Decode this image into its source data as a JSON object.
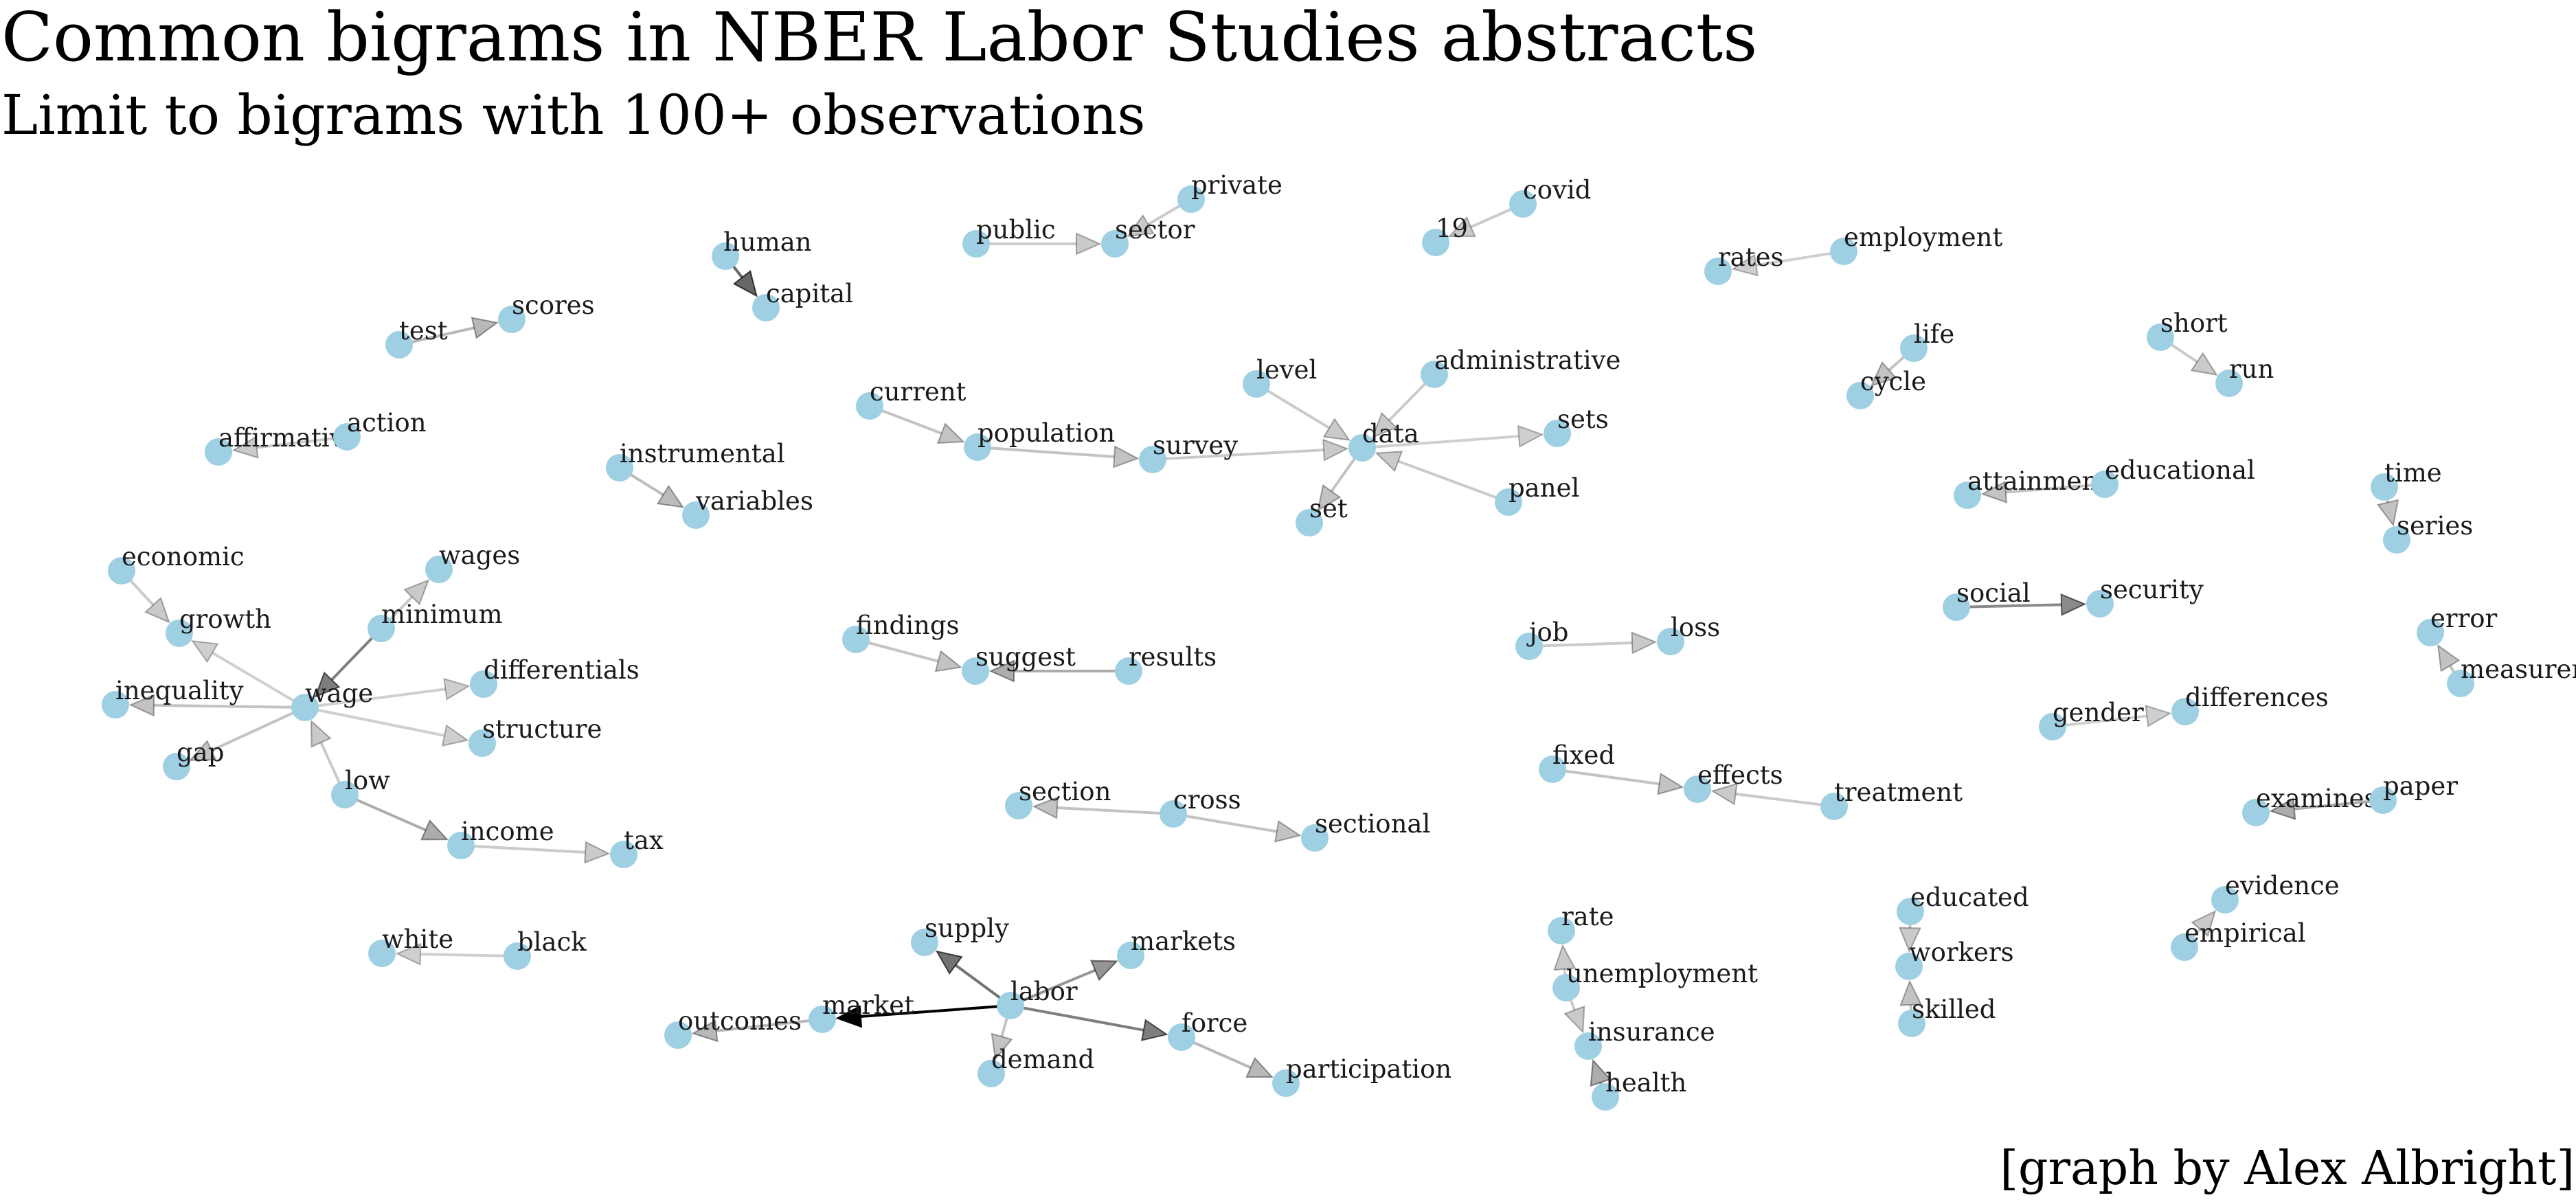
{
  "title": "Common bigrams in NBER Labor Studies abstracts",
  "subtitle": "Limit to bigrams with 100+ observations",
  "credit": "[graph by Alex Albright]",
  "colors": {
    "node": "#9ecfe3",
    "edge": "#000000"
  },
  "graph": {
    "nodes": [
      {
        "id": "human",
        "label": "human"
      },
      {
        "id": "capital",
        "label": "capital"
      },
      {
        "id": "public",
        "label": "public"
      },
      {
        "id": "sector",
        "label": "sector"
      },
      {
        "id": "private",
        "label": "private"
      },
      {
        "id": "covid",
        "label": "covid"
      },
      {
        "id": "n19",
        "label": "19"
      },
      {
        "id": "rates",
        "label": "rates"
      },
      {
        "id": "employment",
        "label": "employment"
      },
      {
        "id": "test",
        "label": "test"
      },
      {
        "id": "scores",
        "label": "scores"
      },
      {
        "id": "life",
        "label": "life"
      },
      {
        "id": "cycle",
        "label": "cycle"
      },
      {
        "id": "short",
        "label": "short"
      },
      {
        "id": "run",
        "label": "run"
      },
      {
        "id": "current",
        "label": "current"
      },
      {
        "id": "population",
        "label": "population"
      },
      {
        "id": "survey",
        "label": "survey"
      },
      {
        "id": "level",
        "label": "level"
      },
      {
        "id": "administrative",
        "label": "administrative"
      },
      {
        "id": "data",
        "label": "data"
      },
      {
        "id": "sets",
        "label": "sets"
      },
      {
        "id": "set",
        "label": "set"
      },
      {
        "id": "panel",
        "label": "panel"
      },
      {
        "id": "affirmative",
        "label": "affirmative"
      },
      {
        "id": "action",
        "label": "action"
      },
      {
        "id": "instrumental",
        "label": "instrumental"
      },
      {
        "id": "variables",
        "label": "variables"
      },
      {
        "id": "attainment",
        "label": "attainment"
      },
      {
        "id": "educational",
        "label": "educational"
      },
      {
        "id": "time",
        "label": "time"
      },
      {
        "id": "series",
        "label": "series"
      },
      {
        "id": "economic",
        "label": "economic"
      },
      {
        "id": "growth",
        "label": "growth"
      },
      {
        "id": "wages",
        "label": "wages"
      },
      {
        "id": "minimum",
        "label": "minimum"
      },
      {
        "id": "wage",
        "label": "wage"
      },
      {
        "id": "inequality",
        "label": "inequality"
      },
      {
        "id": "differentials",
        "label": "differentials"
      },
      {
        "id": "structure",
        "label": "structure"
      },
      {
        "id": "gap",
        "label": "gap"
      },
      {
        "id": "low",
        "label": "low"
      },
      {
        "id": "income",
        "label": "income"
      },
      {
        "id": "tax",
        "label": "tax"
      },
      {
        "id": "findings",
        "label": "findings"
      },
      {
        "id": "suggest",
        "label": "suggest"
      },
      {
        "id": "results",
        "label": "results"
      },
      {
        "id": "job",
        "label": "job"
      },
      {
        "id": "loss",
        "label": "loss"
      },
      {
        "id": "social",
        "label": "social"
      },
      {
        "id": "security",
        "label": "security"
      },
      {
        "id": "error",
        "label": "error"
      },
      {
        "id": "measurement",
        "label": "measurement"
      },
      {
        "id": "gender",
        "label": "gender"
      },
      {
        "id": "differences",
        "label": "differences"
      },
      {
        "id": "fixed",
        "label": "fixed"
      },
      {
        "id": "effects",
        "label": "effects"
      },
      {
        "id": "treatment",
        "label": "treatment"
      },
      {
        "id": "section",
        "label": "section"
      },
      {
        "id": "cross",
        "label": "cross"
      },
      {
        "id": "sectional",
        "label": "sectional"
      },
      {
        "id": "examines",
        "label": "examines"
      },
      {
        "id": "paper",
        "label": "paper"
      },
      {
        "id": "evidence",
        "label": "evidence"
      },
      {
        "id": "empirical",
        "label": "empirical"
      },
      {
        "id": "white",
        "label": "white"
      },
      {
        "id": "black",
        "label": "black"
      },
      {
        "id": "supply",
        "label": "supply"
      },
      {
        "id": "markets",
        "label": "markets"
      },
      {
        "id": "labor",
        "label": "labor"
      },
      {
        "id": "outcomes",
        "label": "outcomes"
      },
      {
        "id": "market",
        "label": "market"
      },
      {
        "id": "force",
        "label": "force"
      },
      {
        "id": "demand",
        "label": "demand"
      },
      {
        "id": "participation",
        "label": "participation"
      },
      {
        "id": "rate",
        "label": "rate"
      },
      {
        "id": "unemployment",
        "label": "unemployment"
      },
      {
        "id": "insurance",
        "label": "insurance"
      },
      {
        "id": "health",
        "label": "health"
      },
      {
        "id": "educated",
        "label": "educated"
      },
      {
        "id": "workers",
        "label": "workers"
      },
      {
        "id": "skilled",
        "label": "skilled"
      }
    ],
    "edges": [
      {
        "from": "human",
        "to": "capital",
        "weight": 0.55
      },
      {
        "from": "public",
        "to": "sector",
        "weight": 0.12
      },
      {
        "from": "private",
        "to": "sector",
        "weight": 0.12
      },
      {
        "from": "covid",
        "to": "n19",
        "weight": 0.12
      },
      {
        "from": "employment",
        "to": "rates",
        "weight": 0.1
      },
      {
        "from": "test",
        "to": "scores",
        "weight": 0.2
      },
      {
        "from": "life",
        "to": "cycle",
        "weight": 0.15
      },
      {
        "from": "short",
        "to": "run",
        "weight": 0.12
      },
      {
        "from": "current",
        "to": "population",
        "weight": 0.15
      },
      {
        "from": "population",
        "to": "survey",
        "weight": 0.15
      },
      {
        "from": "survey",
        "to": "data",
        "weight": 0.12
      },
      {
        "from": "level",
        "to": "data",
        "weight": 0.12
      },
      {
        "from": "administrative",
        "to": "data",
        "weight": 0.12
      },
      {
        "from": "data",
        "to": "sets",
        "weight": 0.1
      },
      {
        "from": "data",
        "to": "set",
        "weight": 0.15
      },
      {
        "from": "panel",
        "to": "data",
        "weight": 0.12
      },
      {
        "from": "action",
        "to": "affirmative",
        "weight": 0.12
      },
      {
        "from": "instrumental",
        "to": "variables",
        "weight": 0.18
      },
      {
        "from": "educational",
        "to": "attainment",
        "weight": 0.15
      },
      {
        "from": "time",
        "to": "series",
        "weight": 0.15
      },
      {
        "from": "economic",
        "to": "growth",
        "weight": 0.12
      },
      {
        "from": "minimum",
        "to": "wages",
        "weight": 0.12
      },
      {
        "from": "minimum",
        "to": "wage",
        "weight": 0.45
      },
      {
        "from": "wage",
        "to": "growth",
        "weight": 0.1
      },
      {
        "from": "wage",
        "to": "inequality",
        "weight": 0.15
      },
      {
        "from": "wage",
        "to": "differentials",
        "weight": 0.1
      },
      {
        "from": "wage",
        "to": "structure",
        "weight": 0.1
      },
      {
        "from": "wage",
        "to": "gap",
        "weight": 0.15
      },
      {
        "from": "low",
        "to": "wage",
        "weight": 0.12
      },
      {
        "from": "low",
        "to": "income",
        "weight": 0.25
      },
      {
        "from": "income",
        "to": "tax",
        "weight": 0.12
      },
      {
        "from": "findings",
        "to": "suggest",
        "weight": 0.15
      },
      {
        "from": "results",
        "to": "suggest",
        "weight": 0.25
      },
      {
        "from": "job",
        "to": "loss",
        "weight": 0.12
      },
      {
        "from": "social",
        "to": "security",
        "weight": 0.4
      },
      {
        "from": "measurement",
        "to": "error",
        "weight": 0.15
      },
      {
        "from": "gender",
        "to": "differences",
        "weight": 0.1
      },
      {
        "from": "fixed",
        "to": "effects",
        "weight": 0.15
      },
      {
        "from": "treatment",
        "to": "effects",
        "weight": 0.12
      },
      {
        "from": "cross",
        "to": "section",
        "weight": 0.15
      },
      {
        "from": "cross",
        "to": "sectional",
        "weight": 0.15
      },
      {
        "from": "paper",
        "to": "examines",
        "weight": 0.25
      },
      {
        "from": "empirical",
        "to": "evidence",
        "weight": 0.12
      },
      {
        "from": "black",
        "to": "white",
        "weight": 0.1
      },
      {
        "from": "labor",
        "to": "supply",
        "weight": 0.5
      },
      {
        "from": "labor",
        "to": "markets",
        "weight": 0.35
      },
      {
        "from": "labor",
        "to": "market",
        "weight": 1.0
      },
      {
        "from": "labor",
        "to": "force",
        "weight": 0.45
      },
      {
        "from": "labor",
        "to": "demand",
        "weight": 0.15
      },
      {
        "from": "market",
        "to": "outcomes",
        "weight": 0.2
      },
      {
        "from": "force",
        "to": "participation",
        "weight": 0.2
      },
      {
        "from": "unemployment",
        "to": "rate",
        "weight": 0.12
      },
      {
        "from": "unemployment",
        "to": "insurance",
        "weight": 0.12
      },
      {
        "from": "health",
        "to": "insurance",
        "weight": 0.25
      },
      {
        "from": "educated",
        "to": "workers",
        "weight": 0.12
      },
      {
        "from": "skilled",
        "to": "workers",
        "weight": 0.15
      }
    ]
  }
}
